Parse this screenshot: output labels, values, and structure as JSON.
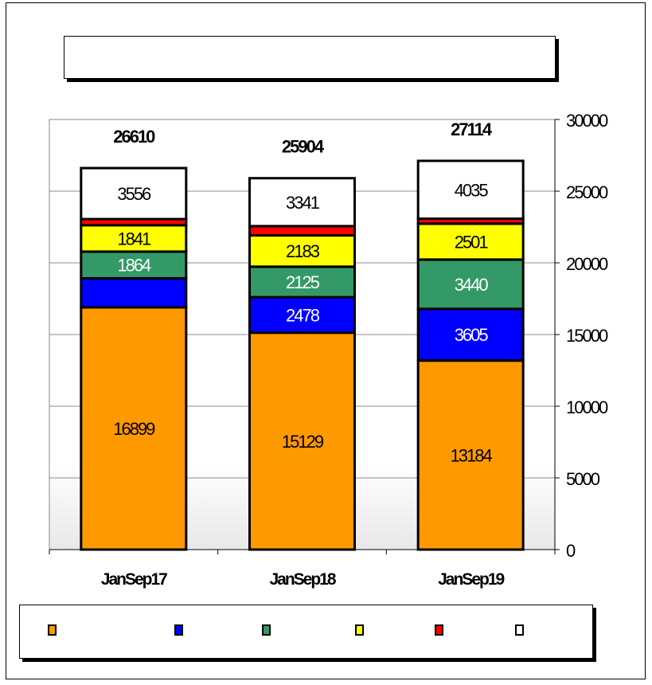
{
  "chart_data": {
    "type": "bar",
    "stacked": true,
    "title": "",
    "categories": [
      "JanSep17",
      "JanSep18",
      "JanSep19"
    ],
    "totals": [
      26610,
      25904,
      27114
    ],
    "series": [
      {
        "color": "#ff9900",
        "values": [
          16899,
          15129,
          13184
        ],
        "labels": [
          "16899",
          "15129",
          "13184"
        ],
        "label_color": "#000000"
      },
      {
        "color": "#0000ff",
        "values": [
          2021,
          2478,
          3605
        ],
        "labels": [
          "",
          "2478",
          "3605"
        ],
        "label_color": "#ffffff"
      },
      {
        "color": "#339966",
        "values": [
          1864,
          2125,
          3440
        ],
        "labels": [
          "1864",
          "2125",
          "3440"
        ],
        "label_color": "#ffffff"
      },
      {
        "color": "#ffff00",
        "values": [
          1841,
          2183,
          2501
        ],
        "labels": [
          "1841",
          "2183",
          "2501"
        ],
        "label_color": "#000000"
      },
      {
        "color": "#ff0000",
        "values": [
          429,
          648,
          349
        ],
        "labels": [
          "",
          "",
          ""
        ],
        "label_color": "#000000"
      },
      {
        "color": "#ffffff",
        "values": [
          3556,
          3341,
          4035
        ],
        "labels": [
          "3556",
          "3341",
          "4035"
        ],
        "label_color": "#000000"
      }
    ],
    "y_axis": {
      "position": "right",
      "range": [
        0,
        30000
      ],
      "ticks": [
        "0",
        "5000",
        "10000",
        "15000",
        "20000",
        "25000",
        "30000"
      ]
    },
    "grid": true,
    "legend": {
      "position": "bottom",
      "entries": [
        "",
        "",
        "",
        "",
        "",
        ""
      ]
    }
  }
}
